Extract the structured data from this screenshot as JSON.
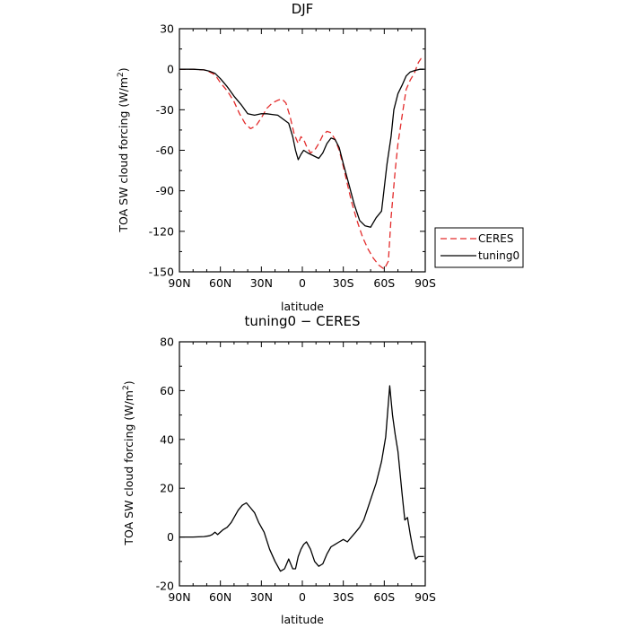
{
  "chart_data": [
    {
      "type": "line",
      "title": "DJF",
      "xlabel": "latitude",
      "ylabel": "TOA SW cloud forcing (W/m",
      "ylabel_sup": "2",
      "ylabel_close": ")",
      "xlim": [
        90,
        -90
      ],
      "ylim": [
        -150,
        30
      ],
      "xticks": [
        90,
        60,
        30,
        0,
        -30,
        -60,
        -90
      ],
      "xticklabels": [
        "90N",
        "60N",
        "30N",
        "0",
        "30S",
        "60S",
        "90S"
      ],
      "yticks": [
        30,
        0,
        -30,
        -60,
        -90,
        -120,
        -150
      ],
      "yticklabels": [
        "30",
        "0",
        "-30",
        "-60",
        "-90",
        "-120",
        "-150"
      ],
      "legend_position": "right",
      "series": [
        {
          "name": "CERES",
          "color": "#e32b2b",
          "style": "dashed",
          "x": [
            90,
            80,
            72,
            68,
            64,
            60,
            55,
            50,
            46,
            42,
            38,
            34,
            30,
            26,
            22,
            18,
            15,
            12,
            9,
            6,
            3,
            1,
            -1,
            -3,
            -6,
            -9,
            -12,
            -15,
            -18,
            -21,
            -24,
            -27,
            -30,
            -33,
            -36,
            -40,
            -44,
            -48,
            -52,
            -56,
            -60,
            -63,
            -65,
            -68,
            -70,
            -73,
            -76,
            -79,
            -82,
            -85,
            -87,
            -89
          ],
          "y": [
            0,
            0,
            -0.5,
            -2,
            -4,
            -10,
            -16,
            -24,
            -33,
            -40,
            -44,
            -42,
            -36,
            -29,
            -25,
            -23,
            -22,
            -25,
            -35,
            -48,
            -55,
            -50,
            -52,
            -57,
            -62,
            -60,
            -55,
            -49,
            -46,
            -47,
            -52,
            -60,
            -72,
            -85,
            -98,
            -112,
            -124,
            -133,
            -140,
            -145,
            -148,
            -142,
            -110,
            -75,
            -55,
            -35,
            -15,
            -8,
            -3,
            5,
            8,
            8
          ]
        },
        {
          "name": "tuning0",
          "color": "#000000",
          "style": "solid",
          "x": [
            90,
            80,
            72,
            68,
            64,
            60,
            55,
            50,
            45,
            40,
            35,
            30,
            26,
            22,
            18,
            14,
            10,
            7,
            5,
            3,
            1,
            -1,
            -4,
            -8,
            -12,
            -15,
            -18,
            -21,
            -24,
            -27,
            -30,
            -34,
            -38,
            -42,
            -46,
            -50,
            -54,
            -58,
            -62,
            -65,
            -67,
            -70,
            -73,
            -76,
            -79,
            -82,
            -86,
            -89
          ],
          "y": [
            0,
            0,
            -0.5,
            -1.5,
            -3,
            -7,
            -13,
            -20,
            -26,
            -33,
            -34,
            -33,
            -33,
            -33.5,
            -34,
            -37,
            -40,
            -50,
            -60,
            -67,
            -63,
            -60,
            -62,
            -64,
            -66,
            -62,
            -55,
            -51,
            -52,
            -58,
            -70,
            -85,
            -100,
            -112,
            -116,
            -117,
            -110,
            -105,
            -70,
            -50,
            -30,
            -18,
            -12,
            -5,
            -2,
            -1,
            0,
            0
          ]
        }
      ]
    },
    {
      "type": "line",
      "title": "tuning0 − CERES",
      "xlabel": "latitude",
      "ylabel": "TOA SW cloud forcing (W/m",
      "ylabel_sup": "2",
      "ylabel_close": ")",
      "xlim": [
        90,
        -90
      ],
      "ylim": [
        -20,
        80
      ],
      "xticks": [
        90,
        60,
        30,
        0,
        -30,
        -60,
        -90
      ],
      "xticklabels": [
        "90N",
        "60N",
        "30N",
        "0",
        "30S",
        "60S",
        "90S"
      ],
      "yticks": [
        80,
        60,
        40,
        20,
        0,
        -20
      ],
      "yticklabels": [
        "80",
        "60",
        "40",
        "20",
        "0",
        "-20"
      ],
      "series": [
        {
          "color": "#000000",
          "style": "solid",
          "x": [
            90,
            80,
            72,
            68,
            66,
            64,
            62,
            58,
            55,
            52,
            50,
            47,
            44,
            41,
            38,
            35,
            32,
            28,
            24,
            20,
            16,
            13,
            10,
            7,
            5,
            3,
            1,
            -1,
            -3,
            -6,
            -9,
            -12,
            -15,
            -18,
            -21,
            -24,
            -27,
            -30,
            -33,
            -36,
            -39,
            -42,
            -45,
            -48,
            -51,
            -54,
            -58,
            -61,
            -64,
            -66,
            -68,
            -70,
            -73,
            -75,
            -77,
            -79,
            -81,
            -83,
            -85,
            -87,
            -89
          ],
          "y": [
            0,
            0,
            0.2,
            0.5,
            1,
            2,
            1,
            3,
            4,
            6,
            8,
            11,
            13,
            14,
            12,
            10,
            6,
            2,
            -5,
            -10,
            -14,
            -13,
            -9,
            -13,
            -13,
            -8,
            -5,
            -3,
            -2,
            -5,
            -10,
            -12,
            -11,
            -7,
            -4,
            -3,
            -2,
            -1,
            -2,
            0,
            2,
            4,
            7,
            12,
            17,
            22,
            31,
            41,
            62,
            50,
            42,
            35,
            18,
            7,
            8,
            1,
            -5,
            -9,
            -8,
            -8,
            -8
          ]
        }
      ]
    }
  ]
}
